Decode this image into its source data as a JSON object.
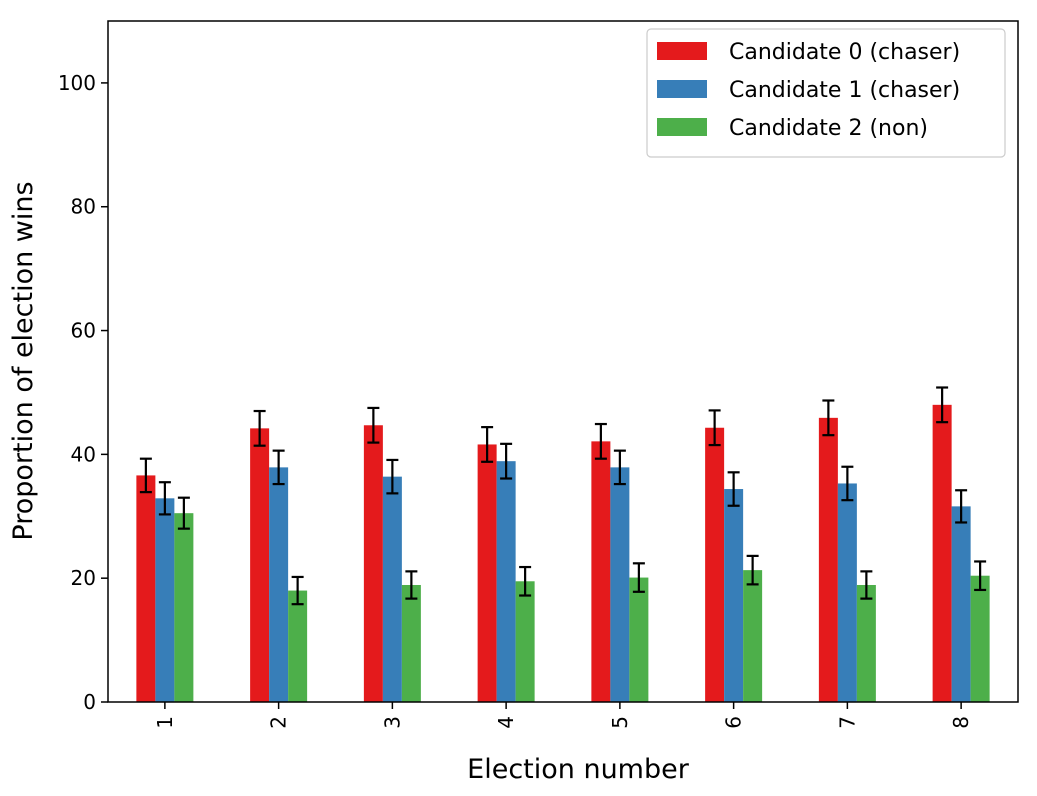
{
  "chart_data": {
    "type": "bar",
    "title": "",
    "xlabel": "Election number",
    "ylabel": "Proportion of election wins",
    "categories": [
      "1",
      "2",
      "3",
      "4",
      "5",
      "6",
      "7",
      "8"
    ],
    "ylim": [
      0,
      110
    ],
    "yticks": [
      "0",
      "20",
      "40",
      "60",
      "80",
      "100"
    ],
    "grid": false,
    "legend_position": "top-right",
    "series": [
      {
        "name": "Candidate 0 (chaser)",
        "color": "#e41a1c",
        "values": [
          36.6,
          44.2,
          44.7,
          41.6,
          42.1,
          44.3,
          45.9,
          48.0
        ],
        "error": [
          2.7,
          2.8,
          2.8,
          2.8,
          2.8,
          2.8,
          2.8,
          2.8
        ]
      },
      {
        "name": "Candidate 1 (chaser)",
        "color": "#377eb8",
        "values": [
          32.9,
          37.9,
          36.4,
          38.9,
          37.9,
          34.4,
          35.3,
          31.6
        ],
        "error": [
          2.6,
          2.7,
          2.7,
          2.8,
          2.7,
          2.7,
          2.7,
          2.6
        ]
      },
      {
        "name": "Candidate 2 (non)",
        "color": "#4daf4a",
        "values": [
          30.5,
          18.0,
          18.9,
          19.5,
          20.1,
          21.3,
          18.9,
          20.4
        ],
        "error": [
          2.5,
          2.2,
          2.2,
          2.3,
          2.3,
          2.3,
          2.2,
          2.3
        ]
      }
    ]
  }
}
